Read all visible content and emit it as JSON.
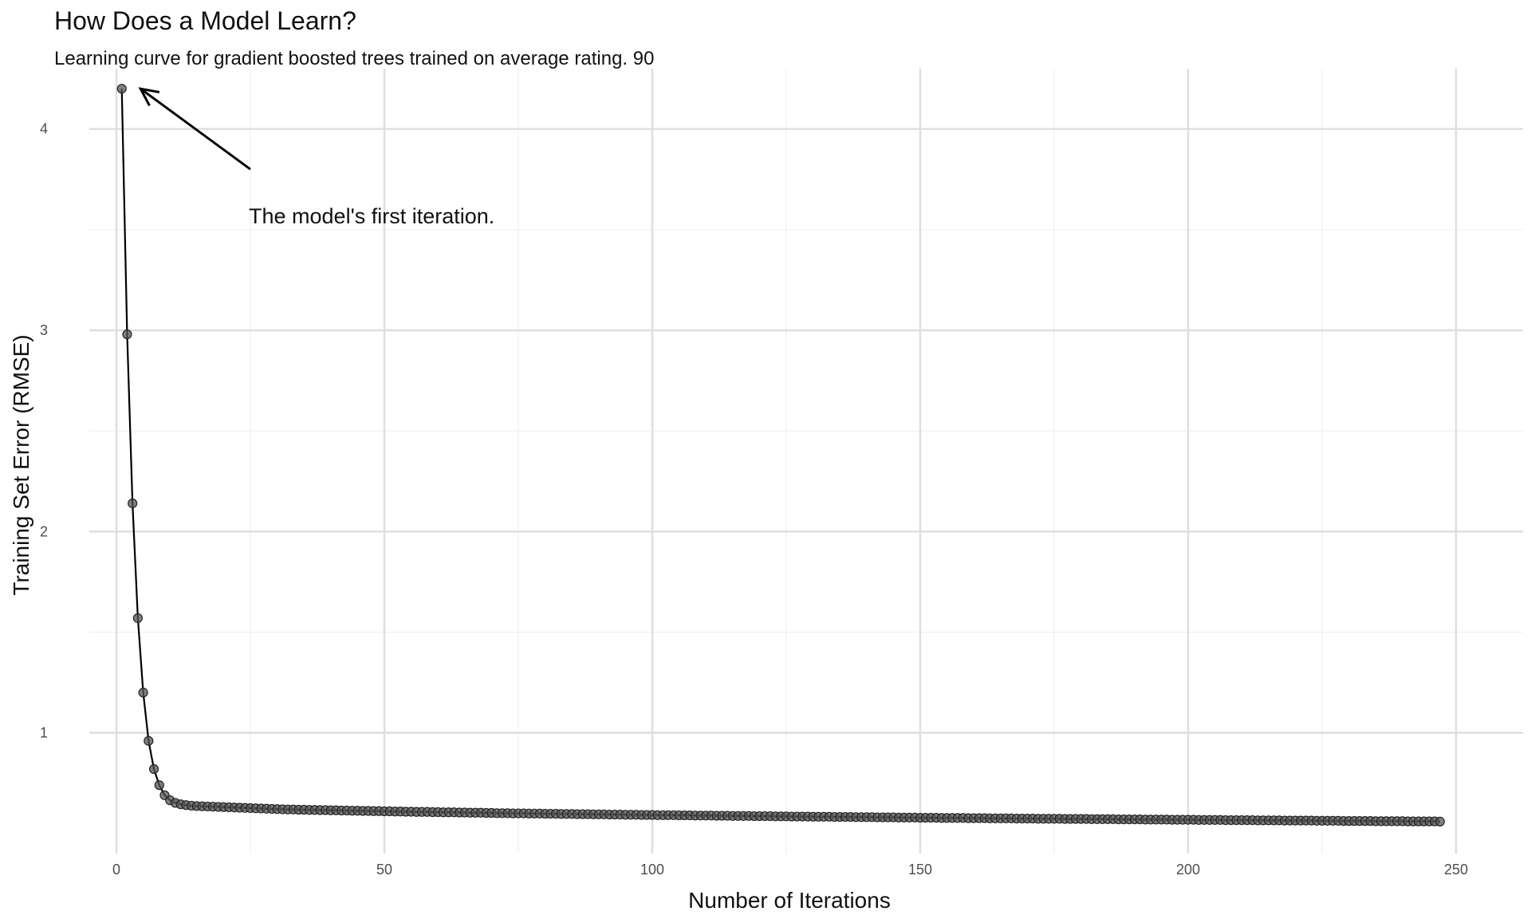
{
  "title": "How Does a Model Learn?",
  "subtitle": "Learning curve for gradient boosted trees trained on average rating. 90",
  "chart_data": {
    "type": "line",
    "xlabel": "Number of Iterations",
    "ylabel": "Training Set Error (RMSE)",
    "xlim": [
      0,
      250
    ],
    "ylim": [
      0.4,
      4.3
    ],
    "x_ticks": [
      0,
      50,
      100,
      150,
      200,
      250
    ],
    "y_ticks": [
      1,
      2,
      3,
      4
    ],
    "grid": true,
    "point_color": "#555555",
    "line_color": "#000000",
    "series": [
      {
        "x_start": 1,
        "x_end": 250,
        "x_step": 1,
        "values": [
          4.2,
          2.98,
          2.14,
          1.57,
          1.2,
          0.96,
          0.82,
          0.74,
          0.69,
          0.665,
          0.652,
          0.645,
          0.641,
          0.638,
          0.636,
          0.635,
          0.634,
          0.633,
          0.632,
          0.631,
          0.63,
          0.629,
          0.628,
          0.627,
          0.626,
          0.625,
          0.624,
          0.623,
          0.622,
          0.621,
          0.62,
          0.619,
          0.619,
          0.618,
          0.618,
          0.617,
          0.617,
          0.616,
          0.616,
          0.615,
          0.615,
          0.614,
          0.614,
          0.613,
          0.613,
          0.612,
          0.612,
          0.611,
          0.611,
          0.61,
          0.61,
          0.609,
          0.609,
          0.608,
          0.608,
          0.607,
          0.607,
          0.607,
          0.606,
          0.606,
          0.605,
          0.605,
          0.605,
          0.604,
          0.604,
          0.603,
          0.603,
          0.603,
          0.602,
          0.602,
          0.601,
          0.601,
          0.601,
          0.6,
          0.6,
          0.6,
          0.599,
          0.599,
          0.599,
          0.598,
          0.598,
          0.598,
          0.597,
          0.597,
          0.597,
          0.596,
          0.596,
          0.596,
          0.595,
          0.595,
          0.595,
          0.594,
          0.594,
          0.594,
          0.593,
          0.593,
          0.593,
          0.592,
          0.592,
          0.592,
          0.591,
          0.591,
          0.591,
          0.591,
          0.59,
          0.59,
          0.59,
          0.589,
          0.589,
          0.589,
          0.589,
          0.588,
          0.588,
          0.588,
          0.587,
          0.587,
          0.587,
          0.587,
          0.586,
          0.586,
          0.586,
          0.586,
          0.585,
          0.585,
          0.585,
          0.584,
          0.584,
          0.584,
          0.584,
          0.583,
          0.583,
          0.583,
          0.583,
          0.582,
          0.582,
          0.582,
          0.582,
          0.581,
          0.581,
          0.581,
          0.581,
          0.58,
          0.58,
          0.58,
          0.58,
          0.579,
          0.579,
          0.579,
          0.579,
          0.578,
          0.578,
          0.578,
          0.578,
          0.577,
          0.577,
          0.577,
          0.577,
          0.577,
          0.576,
          0.576,
          0.576,
          0.576,
          0.575,
          0.575,
          0.575,
          0.575,
          0.575,
          0.574,
          0.574,
          0.574,
          0.574,
          0.573,
          0.573,
          0.573,
          0.573,
          0.573,
          0.572,
          0.572,
          0.572,
          0.572,
          0.572,
          0.571,
          0.571,
          0.571,
          0.571,
          0.571,
          0.57,
          0.57,
          0.57,
          0.57,
          0.57,
          0.569,
          0.569,
          0.569,
          0.569,
          0.569,
          0.568,
          0.568,
          0.568,
          0.568,
          0.568,
          0.567,
          0.567,
          0.567,
          0.567,
          0.567,
          0.566,
          0.566,
          0.566,
          0.566,
          0.566,
          0.566,
          0.565,
          0.565,
          0.565,
          0.565,
          0.565,
          0.564,
          0.564,
          0.564,
          0.564,
          0.564,
          0.564,
          0.563,
          0.563,
          0.563,
          0.563,
          0.563,
          0.562,
          0.562,
          0.562,
          0.562,
          0.562,
          0.562,
          0.561,
          0.561,
          0.561,
          0.561,
          0.561,
          0.561,
          0.56,
          0.56,
          0.56,
          0.56,
          0.56,
          0.56,
          0.559
        ]
      }
    ],
    "annotations": [
      {
        "text": "The model's first iteration.",
        "x": 24,
        "y": 3.7,
        "arrow_from_x": 25,
        "arrow_from_y": 3.8,
        "arrow_to_x": 4.5,
        "arrow_to_y": 4.2
      }
    ]
  }
}
